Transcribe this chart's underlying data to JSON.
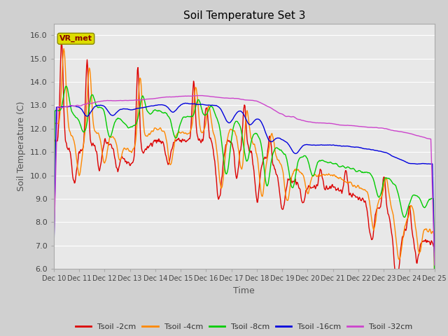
{
  "title": "Soil Temperature Set 3",
  "xlabel": "Time",
  "ylabel": "Soil Temperature (C)",
  "ylim": [
    6.0,
    16.5
  ],
  "yticks": [
    6.0,
    7.0,
    8.0,
    9.0,
    10.0,
    11.0,
    12.0,
    13.0,
    14.0,
    15.0,
    16.0
  ],
  "xlim": [
    0,
    15
  ],
  "xtick_labels": [
    "Dec 10",
    "Dec 11",
    "Dec 12",
    "Dec 13",
    "Dec 14",
    "Dec 15",
    "Dec 16",
    "Dec 17",
    "Dec 18",
    "Dec 19",
    "Dec 20",
    "Dec 21",
    "Dec 22",
    "Dec 23",
    "Dec 24",
    "Dec 25"
  ],
  "colors": {
    "Tsoil -2cm": "#dd0000",
    "Tsoil -4cm": "#ff8800",
    "Tsoil -8cm": "#00cc00",
    "Tsoil -16cm": "#0000dd",
    "Tsoil -32cm": "#cc44cc"
  },
  "legend_label": "VR_met",
  "fig_bg_color": "#d0d0d0",
  "plot_bg_color": "#e8e8e8",
  "grid_color": "#ffffff",
  "linewidth": 1.0
}
